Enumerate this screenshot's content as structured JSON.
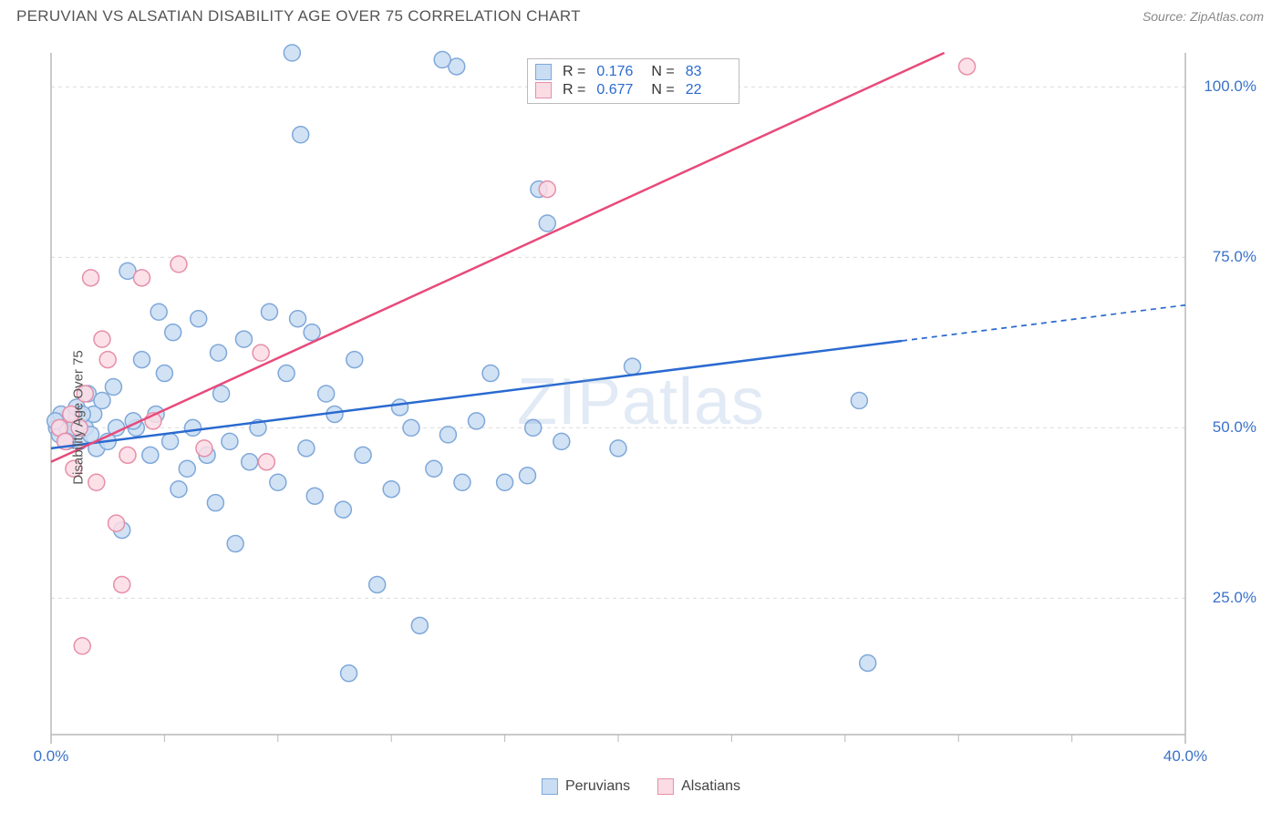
{
  "title": "PERUVIAN VS ALSATIAN DISABILITY AGE OVER 75 CORRELATION CHART",
  "source": "Source: ZipAtlas.com",
  "ylabel": "Disability Age Over 75",
  "watermark": "ZIPatlas",
  "chart": {
    "type": "scatter",
    "background_color": "#ffffff",
    "grid_color": "#dcdcdc",
    "axis_color": "#b8b8b8",
    "point_radius": 9,
    "point_stroke_width": 1.5,
    "line_width": 2.5,
    "xlim": [
      0,
      40
    ],
    "ylim": [
      5,
      105
    ],
    "x_ticks": [
      0,
      40
    ],
    "x_tick_labels": [
      "0.0%",
      "40.0%"
    ],
    "x_minor_ticks": [
      4,
      8,
      12,
      16,
      20,
      24,
      28,
      32,
      36
    ],
    "y_ticks": [
      25,
      50,
      75,
      100
    ],
    "y_tick_labels": [
      "25.0%",
      "50.0%",
      "75.0%",
      "100.0%"
    ],
    "series": [
      {
        "name": "Peruvians",
        "fill": "#c9ddf3",
        "stroke": "#7fa8d9",
        "line_color": "#2a6ad0",
        "R": "0.176",
        "N": "83",
        "trend": {
          "x1": 0,
          "y1": 47,
          "x2": 40,
          "y2": 68,
          "dash_from_x": 30
        },
        "points": [
          [
            0.2,
            50
          ],
          [
            0.3,
            49
          ],
          [
            0.4,
            51
          ],
          [
            0.5,
            50.5
          ],
          [
            0.6,
            49.5
          ],
          [
            0.7,
            51.5
          ],
          [
            0.8,
            50
          ],
          [
            0.9,
            53
          ],
          [
            1.0,
            48
          ],
          [
            1.2,
            50
          ],
          [
            1.3,
            55
          ],
          [
            1.5,
            52
          ],
          [
            1.6,
            47
          ],
          [
            1.8,
            54
          ],
          [
            2.0,
            48
          ],
          [
            2.2,
            56
          ],
          [
            2.3,
            50
          ],
          [
            2.5,
            35
          ],
          [
            2.7,
            73
          ],
          [
            3.0,
            50
          ],
          [
            3.2,
            60
          ],
          [
            3.5,
            46
          ],
          [
            3.7,
            52
          ],
          [
            4.0,
            58
          ],
          [
            4.2,
            48
          ],
          [
            4.5,
            41
          ],
          [
            4.8,
            44
          ],
          [
            5.0,
            50
          ],
          [
            5.2,
            66
          ],
          [
            5.5,
            46
          ],
          [
            5.8,
            39
          ],
          [
            6.0,
            55
          ],
          [
            6.3,
            48
          ],
          [
            6.5,
            33
          ],
          [
            8.8,
            93
          ],
          [
            7.0,
            45
          ],
          [
            7.3,
            50
          ],
          [
            7.7,
            67
          ],
          [
            8.0,
            42
          ],
          [
            8.3,
            58
          ],
          [
            8.7,
            66
          ],
          [
            9.0,
            47
          ],
          [
            9.3,
            40
          ],
          [
            9.7,
            55
          ],
          [
            10.0,
            52
          ],
          [
            10.3,
            38
          ],
          [
            10.5,
            14
          ],
          [
            10.7,
            60
          ],
          [
            11.0,
            46
          ],
          [
            11.5,
            27
          ],
          [
            12.0,
            41
          ],
          [
            12.3,
            53
          ],
          [
            12.7,
            50
          ],
          [
            13.0,
            21
          ],
          [
            13.5,
            44
          ],
          [
            14.0,
            49
          ],
          [
            14.5,
            42
          ],
          [
            15.0,
            51
          ],
          [
            15.5,
            58
          ],
          [
            16.0,
            42
          ],
          [
            16.8,
            43
          ],
          [
            17.0,
            50
          ],
          [
            17.5,
            80
          ],
          [
            18.0,
            48
          ],
          [
            14.3,
            103
          ],
          [
            20.0,
            47
          ],
          [
            20.5,
            59
          ],
          [
            13.8,
            104
          ],
          [
            17.2,
            85
          ],
          [
            28.5,
            54
          ],
          [
            28.8,
            15.5
          ],
          [
            8.5,
            105
          ],
          [
            6.8,
            63
          ],
          [
            4.3,
            64
          ],
          [
            3.8,
            67
          ],
          [
            5.9,
            61
          ],
          [
            9.2,
            64
          ],
          [
            2.9,
            51
          ],
          [
            1.1,
            52
          ],
          [
            1.4,
            49
          ],
          [
            0.35,
            52
          ],
          [
            0.55,
            48
          ],
          [
            0.15,
            51
          ]
        ]
      },
      {
        "name": "Alsatians",
        "fill": "#fbdce5",
        "stroke": "#e68fa8",
        "line_color": "#e84a7a",
        "R": "0.677",
        "N": "22",
        "trend": {
          "x1": 0,
          "y1": 45,
          "x2": 31.5,
          "y2": 105
        },
        "points": [
          [
            0.3,
            50
          ],
          [
            0.5,
            48
          ],
          [
            0.7,
            52
          ],
          [
            0.8,
            44
          ],
          [
            1.0,
            50
          ],
          [
            1.2,
            55
          ],
          [
            1.4,
            72
          ],
          [
            1.6,
            42
          ],
          [
            1.8,
            63
          ],
          [
            2.0,
            60
          ],
          [
            2.3,
            36
          ],
          [
            2.5,
            27
          ],
          [
            2.7,
            46
          ],
          [
            3.2,
            72
          ],
          [
            3.6,
            51
          ],
          [
            4.5,
            74
          ],
          [
            5.4,
            47
          ],
          [
            7.4,
            61
          ],
          [
            7.6,
            45
          ],
          [
            17.5,
            85
          ],
          [
            32.3,
            103
          ],
          [
            1.1,
            18
          ]
        ]
      }
    ]
  },
  "legend_top": [
    {
      "swatch_fill": "#c9ddf3",
      "swatch_stroke": "#7fa8d9",
      "R": "0.176",
      "N": "83"
    },
    {
      "swatch_fill": "#fbdce5",
      "swatch_stroke": "#e68fa8",
      "R": "0.677",
      "N": "22"
    }
  ],
  "legend_bottom": [
    {
      "swatch_fill": "#c9ddf3",
      "swatch_stroke": "#7fa8d9",
      "label": "Peruvians"
    },
    {
      "swatch_fill": "#fbdce5",
      "swatch_stroke": "#e68fa8",
      "label": "Alsatians"
    }
  ]
}
